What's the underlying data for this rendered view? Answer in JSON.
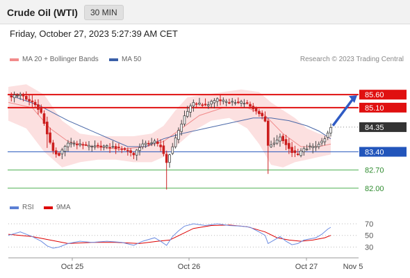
{
  "header": {
    "title": "Crude Oil (WTI)",
    "interval": "30 MIN"
  },
  "timestamp": "Friday, October 27, 2023 5:27:39 AM CET",
  "credit": "Research © 2023 Trading Central",
  "chart_data": [
    {
      "type": "candlestick",
      "legend": [
        {
          "name": "MA 20 + Bollinger Bands",
          "color": "#f28b8b"
        },
        {
          "name": "MA 50",
          "color": "#3a5fa8"
        }
      ],
      "x_tick_labels": [
        "Oct 25",
        "Oct 26",
        "Oct 27",
        "Nov 5"
      ],
      "ylim": [
        81.7,
        86.3
      ],
      "price_levels": [
        {
          "label": "85.60",
          "value": 85.6,
          "style": "resistance"
        },
        {
          "label": "85.10",
          "value": 85.1,
          "style": "resistance"
        },
        {
          "label": "84.35",
          "value": 84.35,
          "style": "last"
        },
        {
          "label": "83.40",
          "value": 83.4,
          "style": "pivot"
        },
        {
          "label": "82.70",
          "value": 82.7,
          "style": "support"
        },
        {
          "label": "82.00",
          "value": 82.0,
          "style": "support"
        }
      ],
      "close_path": [
        [
          0,
          85.5
        ],
        [
          4,
          85.6
        ],
        [
          8,
          85.3
        ],
        [
          11,
          84.9
        ],
        [
          13,
          84.1
        ],
        [
          15,
          83.4
        ],
        [
          17,
          83.3
        ],
        [
          20,
          83.7
        ],
        [
          24,
          83.7
        ],
        [
          28,
          83.6
        ],
        [
          33,
          83.6
        ],
        [
          38,
          83.5
        ],
        [
          42,
          83.3
        ],
        [
          45,
          83.7
        ],
        [
          49,
          83.8
        ],
        [
          51,
          83.6
        ],
        [
          53,
          83.0
        ],
        [
          55,
          83.6
        ],
        [
          57,
          84.2
        ],
        [
          59,
          84.8
        ],
        [
          62,
          85.3
        ],
        [
          66,
          85.2
        ],
        [
          70,
          85.4
        ],
        [
          74,
          85.3
        ],
        [
          78,
          85.3
        ],
        [
          81,
          85.2
        ],
        [
          84,
          84.9
        ],
        [
          86,
          84.6
        ],
        [
          87,
          83.6
        ],
        [
          89,
          83.7
        ],
        [
          91,
          84.0
        ],
        [
          93,
          83.7
        ],
        [
          95,
          83.4
        ],
        [
          97,
          83.3
        ],
        [
          99,
          83.5
        ],
        [
          101,
          83.6
        ],
        [
          103,
          83.6
        ],
        [
          105,
          83.8
        ],
        [
          107,
          84.1
        ],
        [
          108,
          84.3
        ]
      ],
      "ma20": [
        [
          0,
          85.3
        ],
        [
          8,
          85.1
        ],
        [
          14,
          84.3
        ],
        [
          20,
          83.8
        ],
        [
          28,
          83.6
        ],
        [
          38,
          83.5
        ],
        [
          46,
          83.6
        ],
        [
          52,
          83.8
        ],
        [
          58,
          84.3
        ],
        [
          64,
          84.8
        ],
        [
          72,
          85.1
        ],
        [
          80,
          85.1
        ],
        [
          86,
          84.8
        ],
        [
          92,
          84.1
        ],
        [
          98,
          83.6
        ],
        [
          104,
          83.6
        ],
        [
          108,
          83.7
        ]
      ],
      "ma50": [
        [
          0,
          85.6
        ],
        [
          10,
          85.2
        ],
        [
          20,
          84.6
        ],
        [
          30,
          84.1
        ],
        [
          40,
          83.6
        ],
        [
          46,
          83.6
        ],
        [
          52,
          83.9
        ],
        [
          58,
          84.1
        ],
        [
          66,
          84.3
        ],
        [
          74,
          84.5
        ],
        [
          82,
          84.7
        ],
        [
          88,
          84.7
        ],
        [
          94,
          84.6
        ],
        [
          100,
          84.4
        ],
        [
          104,
          84.2
        ],
        [
          108,
          83.9
        ]
      ],
      "bollinger_upper": [
        [
          0,
          85.9
        ],
        [
          6,
          86.0
        ],
        [
          12,
          85.6
        ],
        [
          18,
          84.6
        ],
        [
          24,
          84.1
        ],
        [
          30,
          84.0
        ],
        [
          36,
          84.0
        ],
        [
          42,
          84.0
        ],
        [
          48,
          84.1
        ],
        [
          52,
          84.4
        ],
        [
          56,
          85.0
        ],
        [
          60,
          85.5
        ],
        [
          66,
          85.6
        ],
        [
          72,
          85.7
        ],
        [
          78,
          85.8
        ],
        [
          84,
          85.7
        ],
        [
          88,
          85.3
        ],
        [
          92,
          85.0
        ],
        [
          96,
          84.7
        ],
        [
          100,
          84.3
        ],
        [
          104,
          84.1
        ],
        [
          108,
          84.0
        ]
      ],
      "bollinger_lower": [
        [
          0,
          84.6
        ],
        [
          6,
          84.3
        ],
        [
          12,
          83.4
        ],
        [
          18,
          82.8
        ],
        [
          24,
          83.0
        ],
        [
          30,
          83.1
        ],
        [
          36,
          83.1
        ],
        [
          42,
          83.0
        ],
        [
          48,
          83.0
        ],
        [
          52,
          83.2
        ],
        [
          56,
          83.6
        ],
        [
          62,
          84.2
        ],
        [
          68,
          84.6
        ],
        [
          74,
          84.7
        ],
        [
          80,
          84.3
        ],
        [
          84,
          83.7
        ],
        [
          88,
          82.9
        ],
        [
          92,
          82.8
        ],
        [
          96,
          83.0
        ],
        [
          100,
          83.1
        ],
        [
          104,
          83.2
        ],
        [
          108,
          83.3
        ]
      ],
      "forecast_target": 85.6
    },
    {
      "type": "line",
      "legend": [
        {
          "name": "RSI",
          "color": "#5b7fd4"
        },
        {
          "name": "9MA",
          "color": "#dd0000"
        }
      ],
      "y_tick_labels": [
        "70",
        "50",
        "30"
      ],
      "ylim": [
        15,
        82
      ],
      "rsi": [
        [
          0,
          50
        ],
        [
          4,
          56
        ],
        [
          8,
          48
        ],
        [
          11,
          40
        ],
        [
          13,
          32
        ],
        [
          15,
          28
        ],
        [
          17,
          30
        ],
        [
          20,
          36
        ],
        [
          24,
          40
        ],
        [
          28,
          38
        ],
        [
          33,
          40
        ],
        [
          38,
          38
        ],
        [
          42,
          33
        ],
        [
          45,
          40
        ],
        [
          49,
          46
        ],
        [
          51,
          40
        ],
        [
          53,
          33
        ],
        [
          55,
          48
        ],
        [
          57,
          58
        ],
        [
          59,
          66
        ],
        [
          62,
          70
        ],
        [
          66,
          67
        ],
        [
          70,
          70
        ],
        [
          74,
          67
        ],
        [
          78,
          66
        ],
        [
          81,
          64
        ],
        [
          84,
          56
        ],
        [
          86,
          50
        ],
        [
          87,
          36
        ],
        [
          89,
          42
        ],
        [
          91,
          48
        ],
        [
          93,
          40
        ],
        [
          95,
          34
        ],
        [
          97,
          36
        ],
        [
          99,
          42
        ],
        [
          101,
          44
        ],
        [
          103,
          46
        ],
        [
          105,
          52
        ],
        [
          107,
          61
        ],
        [
          108,
          64
        ]
      ],
      "rsi_ma": [
        [
          0,
          52
        ],
        [
          8,
          48
        ],
        [
          14,
          42
        ],
        [
          20,
          36
        ],
        [
          28,
          38
        ],
        [
          36,
          38
        ],
        [
          44,
          36
        ],
        [
          50,
          40
        ],
        [
          54,
          42
        ],
        [
          58,
          52
        ],
        [
          62,
          62
        ],
        [
          68,
          67
        ],
        [
          74,
          68
        ],
        [
          80,
          65
        ],
        [
          86,
          56
        ],
        [
          90,
          46
        ],
        [
          94,
          42
        ],
        [
          98,
          40
        ],
        [
          102,
          42
        ],
        [
          106,
          46
        ],
        [
          108,
          50
        ]
      ]
    }
  ]
}
